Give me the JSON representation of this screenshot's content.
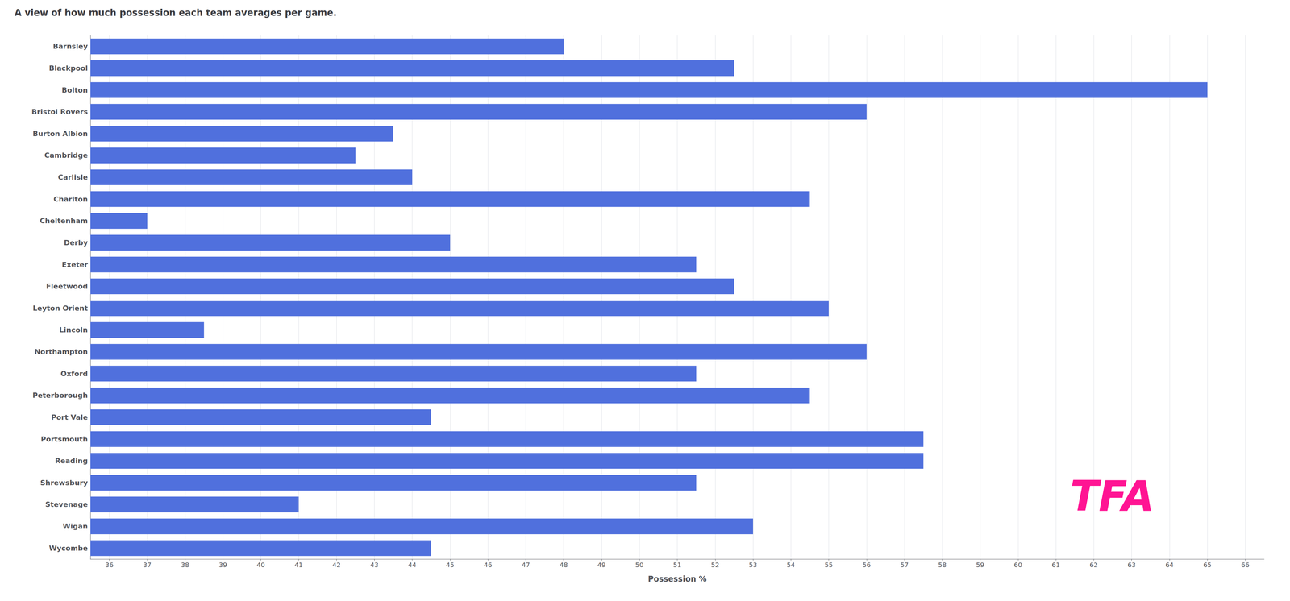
{
  "chart_data": {
    "type": "bar",
    "orientation": "horizontal",
    "title": "A view of how much possession each team averages per game.",
    "x_label": "Possession %",
    "categories": [
      "Barnsley",
      "Blackpool",
      "Bolton",
      "Bristol Rovers",
      "Burton Albion",
      "Cambridge",
      "Carlisle",
      "Charlton",
      "Cheltenham",
      "Derby",
      "Exeter",
      "Fleetwood",
      "Leyton Orient",
      "Lincoln",
      "Northampton",
      "Oxford",
      "Peterborough",
      "Port Vale",
      "Portsmouth",
      "Reading",
      "Shrewsbury",
      "Stevenage",
      "Wigan",
      "Wycombe"
    ],
    "values": [
      48.0,
      52.5,
      65.0,
      56.0,
      43.5,
      42.5,
      44.0,
      54.5,
      37.0,
      45.0,
      51.5,
      52.5,
      55.0,
      38.5,
      56.0,
      51.5,
      54.5,
      44.5,
      57.5,
      57.5,
      51.5,
      41.0,
      53.0,
      44.5
    ],
    "xlim": [
      35.5,
      66.5
    ],
    "xticks": [
      36,
      37,
      38,
      39,
      40,
      41,
      42,
      43,
      44,
      45,
      46,
      47,
      48,
      49,
      50,
      51,
      52,
      53,
      54,
      55,
      56,
      57,
      58,
      59,
      60,
      61,
      62,
      63,
      64,
      65,
      66
    ],
    "grid": true,
    "annotations": [
      {
        "text": "TFA",
        "color": "#FF1493"
      }
    ]
  }
}
